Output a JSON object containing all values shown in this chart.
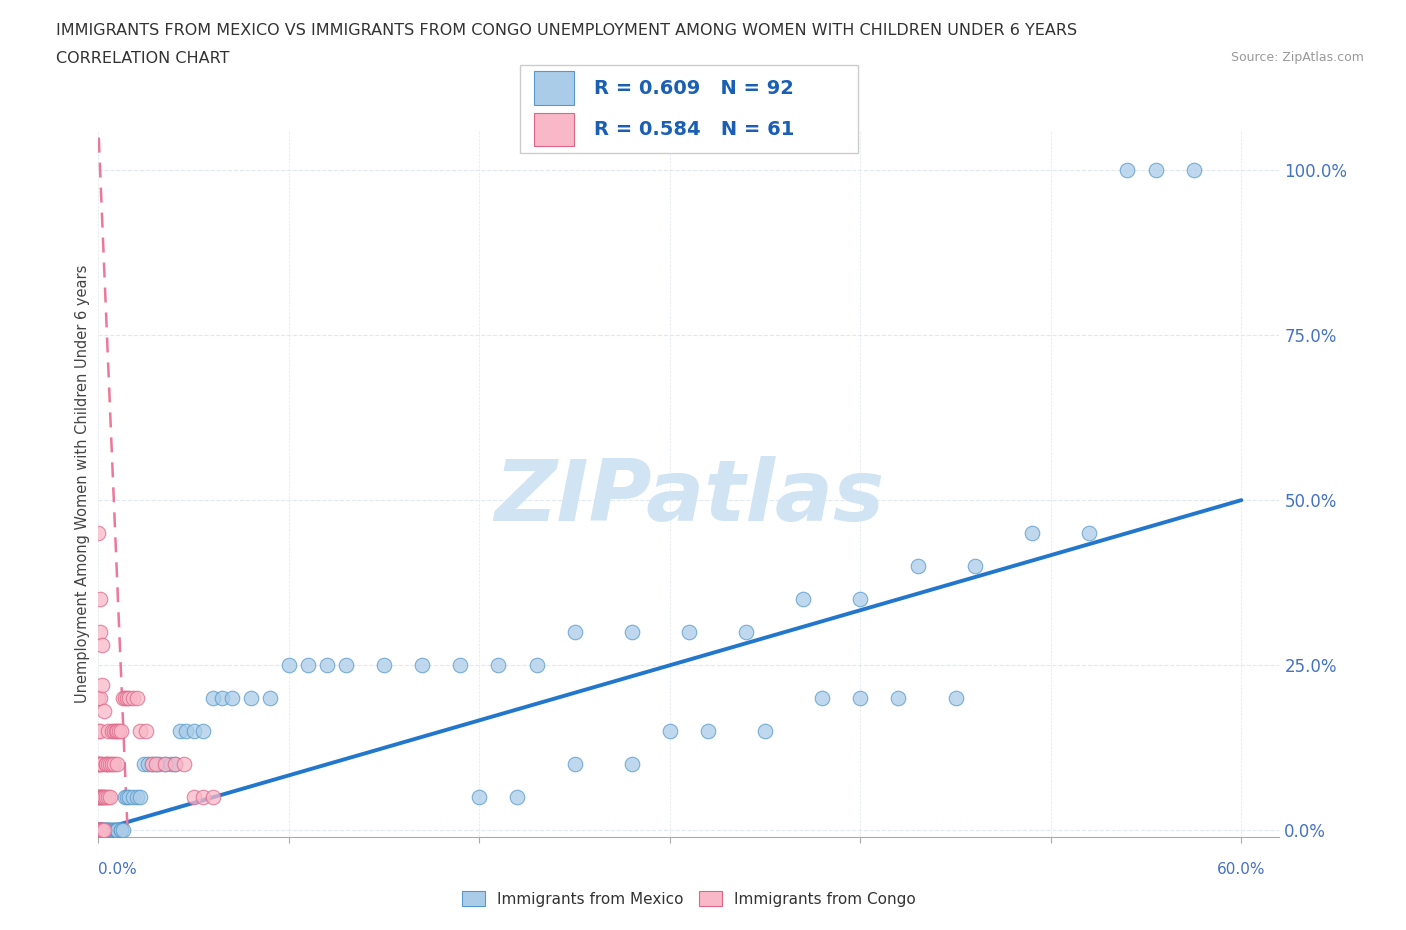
{
  "title_line1": "IMMIGRANTS FROM MEXICO VS IMMIGRANTS FROM CONGO UNEMPLOYMENT AMONG WOMEN WITH CHILDREN UNDER 6 YEARS",
  "title_line2": "CORRELATION CHART",
  "source": "Source: ZipAtlas.com",
  "ylabel": "Unemployment Among Women with Children Under 6 years",
  "xlim": [
    0.0,
    0.62
  ],
  "ylim": [
    -0.01,
    1.06
  ],
  "yticks": [
    0.0,
    0.25,
    0.5,
    0.75,
    1.0
  ],
  "ytick_labels": [
    "0.0%",
    "25.0%",
    "50.0%",
    "75.0%",
    "100.0%"
  ],
  "xtick_left_label": "0.0%",
  "xtick_right_label": "60.0%",
  "mexico_color": "#aacce8",
  "mexico_edge": "#5599cc",
  "congo_color": "#f8b8c8",
  "congo_edge": "#dd6688",
  "mexico_line_color": "#2277cc",
  "congo_line_color": "#ee7799",
  "mexico_R": 0.609,
  "mexico_N": 92,
  "congo_R": 0.584,
  "congo_N": 61,
  "legend_text_color": "#1a5fb4",
  "watermark_color": "#d0e4f4",
  "grid_color": "#e0e8f0",
  "background": "#ffffff",
  "mexico_x": [
    0.0,
    0.0,
    0.0,
    0.0,
    0.0,
    0.001,
    0.001,
    0.001,
    0.001,
    0.001,
    0.002,
    0.002,
    0.002,
    0.003,
    0.003,
    0.003,
    0.004,
    0.004,
    0.004,
    0.005,
    0.005,
    0.005,
    0.006,
    0.006,
    0.007,
    0.007,
    0.008,
    0.008,
    0.009,
    0.009,
    0.01,
    0.01,
    0.01,
    0.012,
    0.012,
    0.013,
    0.014,
    0.015,
    0.016,
    0.018,
    0.02,
    0.022,
    0.024,
    0.026,
    0.028,
    0.03,
    0.032,
    0.035,
    0.038,
    0.04,
    0.043,
    0.046,
    0.05,
    0.055,
    0.06,
    0.065,
    0.07,
    0.08,
    0.09,
    0.1,
    0.11,
    0.12,
    0.13,
    0.15,
    0.17,
    0.19,
    0.21,
    0.23,
    0.25,
    0.28,
    0.31,
    0.34,
    0.37,
    0.4,
    0.43,
    0.46,
    0.49,
    0.52,
    0.54,
    0.555,
    0.575,
    0.35,
    0.38,
    0.42,
    0.28,
    0.32,
    0.45,
    0.2,
    0.25,
    0.3,
    0.4,
    0.22
  ],
  "mexico_y": [
    0.0,
    0.0,
    0.0,
    0.0,
    0.0,
    0.0,
    0.0,
    0.0,
    0.0,
    0.0,
    0.0,
    0.0,
    0.0,
    0.0,
    0.0,
    0.0,
    0.0,
    0.0,
    0.0,
    0.0,
    0.0,
    0.0,
    0.0,
    0.0,
    0.0,
    0.0,
    0.0,
    0.0,
    0.0,
    0.0,
    0.0,
    0.0,
    0.0,
    0.0,
    0.0,
    0.0,
    0.05,
    0.05,
    0.05,
    0.05,
    0.05,
    0.05,
    0.1,
    0.1,
    0.1,
    0.1,
    0.1,
    0.1,
    0.1,
    0.1,
    0.15,
    0.15,
    0.15,
    0.15,
    0.2,
    0.2,
    0.2,
    0.2,
    0.2,
    0.25,
    0.25,
    0.25,
    0.25,
    0.25,
    0.25,
    0.25,
    0.25,
    0.25,
    0.3,
    0.3,
    0.3,
    0.3,
    0.35,
    0.35,
    0.4,
    0.4,
    0.45,
    0.45,
    1.0,
    1.0,
    1.0,
    0.15,
    0.2,
    0.2,
    0.1,
    0.15,
    0.2,
    0.05,
    0.1,
    0.15,
    0.2,
    0.05
  ],
  "congo_x": [
    0.0,
    0.0,
    0.0,
    0.0,
    0.0,
    0.0,
    0.0,
    0.0,
    0.0,
    0.0,
    0.0,
    0.001,
    0.001,
    0.001,
    0.001,
    0.001,
    0.001,
    0.001,
    0.001,
    0.001,
    0.002,
    0.002,
    0.002,
    0.002,
    0.002,
    0.003,
    0.003,
    0.003,
    0.004,
    0.004,
    0.004,
    0.005,
    0.005,
    0.005,
    0.006,
    0.006,
    0.007,
    0.007,
    0.008,
    0.008,
    0.009,
    0.01,
    0.01,
    0.011,
    0.012,
    0.013,
    0.014,
    0.015,
    0.016,
    0.018,
    0.02,
    0.022,
    0.025,
    0.028,
    0.03,
    0.035,
    0.04,
    0.045,
    0.05,
    0.055,
    0.06
  ],
  "congo_y": [
    0.0,
    0.0,
    0.0,
    0.0,
    0.0,
    0.05,
    0.05,
    0.1,
    0.1,
    0.15,
    0.2,
    0.0,
    0.0,
    0.0,
    0.05,
    0.05,
    0.1,
    0.1,
    0.15,
    0.2,
    0.0,
    0.0,
    0.05,
    0.05,
    0.1,
    0.0,
    0.05,
    0.05,
    0.05,
    0.1,
    0.1,
    0.05,
    0.1,
    0.15,
    0.05,
    0.1,
    0.1,
    0.15,
    0.1,
    0.15,
    0.15,
    0.1,
    0.15,
    0.15,
    0.15,
    0.2,
    0.2,
    0.2,
    0.2,
    0.2,
    0.2,
    0.15,
    0.15,
    0.1,
    0.1,
    0.1,
    0.1,
    0.1,
    0.05,
    0.05,
    0.05
  ],
  "congo_high_x": [
    0.0,
    0.001,
    0.001,
    0.002,
    0.002,
    0.003
  ],
  "congo_high_y": [
    0.45,
    0.35,
    0.3,
    0.28,
    0.22,
    0.18
  ]
}
